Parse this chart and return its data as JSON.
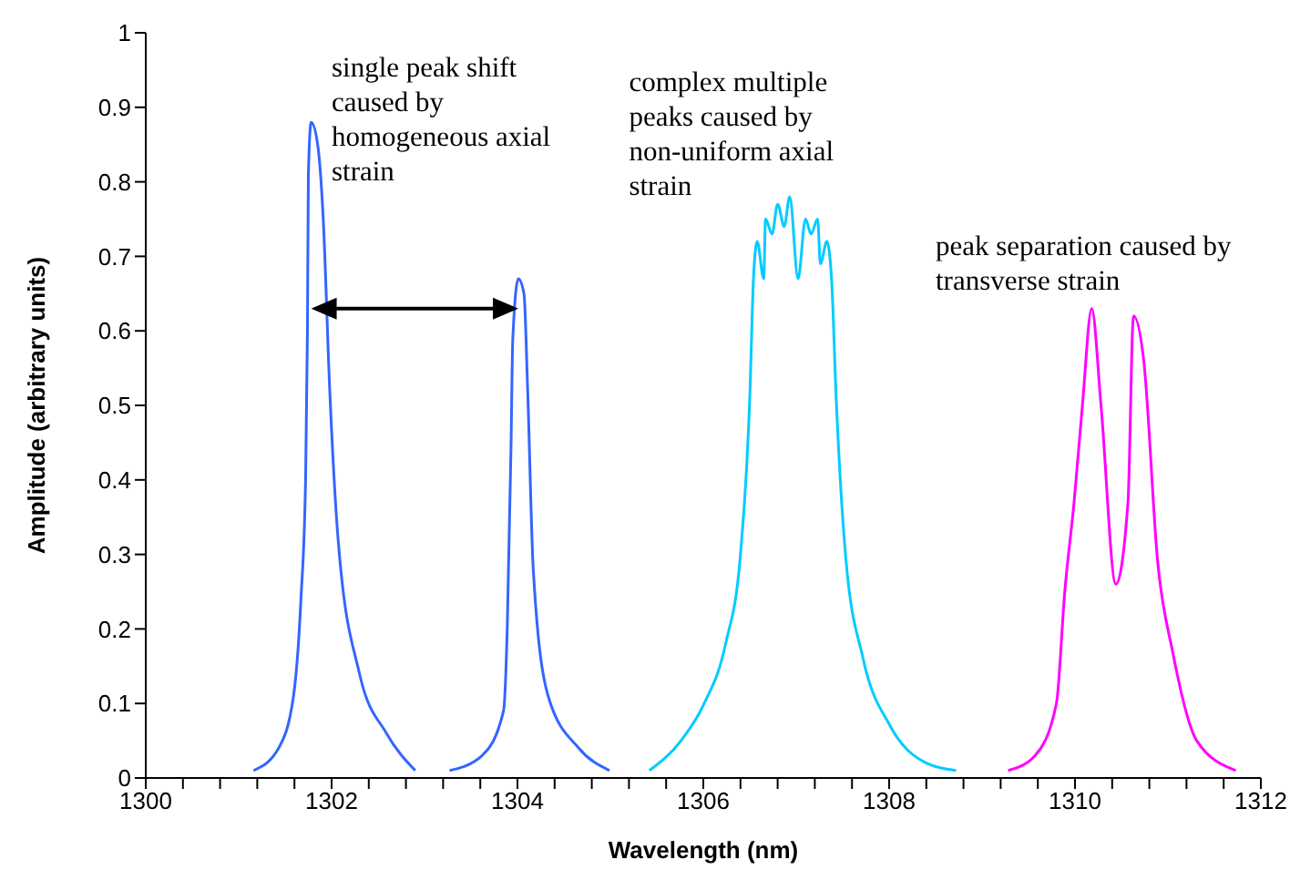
{
  "chart_data": {
    "type": "line",
    "xlabel": "Wavelength (nm)",
    "ylabel": "Amplitude (arbitrary units)",
    "xlim": [
      1300,
      1312
    ],
    "xticks": [
      1300,
      {
        "value": 1300.4,
        "label": null
      },
      {
        "value": 1300.8,
        "label": null
      },
      {
        "value": 1301.2,
        "label": null
      },
      {
        "value": 1301.6,
        "label": null
      },
      1302,
      {
        "value": 1302.4,
        "label": null
      },
      {
        "value": 1302.8,
        "label": null
      },
      {
        "value": 1303.2,
        "label": null
      },
      {
        "value": 1303.6,
        "label": null
      },
      1304,
      {
        "value": 1304.4,
        "label": null
      },
      {
        "value": 1304.8,
        "label": null
      },
      {
        "value": 1305.2,
        "label": null
      },
      {
        "value": 1305.6,
        "label": null
      },
      1306,
      {
        "value": 1306.4,
        "label": null
      },
      {
        "value": 1306.8,
        "label": null
      },
      {
        "value": 1307.2,
        "label": null
      },
      {
        "value": 1307.6,
        "label": null
      },
      1308,
      {
        "value": 1308.4,
        "label": null
      },
      {
        "value": 1308.8,
        "label": null
      },
      {
        "value": 1309.2,
        "label": null
      },
      {
        "value": 1309.6,
        "label": null
      },
      1310,
      {
        "value": 1310.4,
        "label": null
      },
      {
        "value": 1310.8,
        "label": null
      },
      {
        "value": 1311.2,
        "label": null
      },
      {
        "value": 1311.6,
        "label": null
      },
      1312
    ],
    "ylim": [
      0,
      1
    ],
    "yticks": [
      0,
      0.1,
      0.2,
      0.3,
      0.4,
      0.5,
      0.6,
      0.7,
      0.8,
      0.9,
      1
    ],
    "grid": false,
    "legend": false,
    "marker": "none",
    "line_style": "solid",
    "series": [
      {
        "color": "#3366ff",
        "x": [
          1301.16,
          1301.43,
          1301.59,
          1301.67,
          1301.72,
          1301.74,
          1301.75,
          1301.78,
          1301.85,
          1301.91,
          1301.98,
          1302.07,
          1302.3,
          1302.59,
          1302.9
        ],
        "values": [
          0.01,
          0.04,
          0.11,
          0.24,
          0.4,
          0.6,
          0.81,
          0.88,
          0.85,
          0.75,
          0.52,
          0.32,
          0.14,
          0.06,
          0.01
        ]
      },
      {
        "color": "#3366ff",
        "x": [
          1303.27,
          1303.62,
          1303.85,
          1303.89,
          1303.93,
          1303.95,
          1304.01,
          1304.07,
          1304.11,
          1304.17,
          1304.33,
          1304.66,
          1304.99
        ],
        "values": [
          0.01,
          0.03,
          0.09,
          0.2,
          0.44,
          0.59,
          0.67,
          0.65,
          0.52,
          0.28,
          0.11,
          0.04,
          0.01
        ]
      },
      {
        "color": "#00ccff",
        "x": [
          1305.42,
          1305.76,
          1306.01,
          1306.24,
          1306.4,
          1306.5,
          1306.54,
          1306.58,
          1306.65,
          1306.67,
          1306.74,
          1306.8,
          1306.87,
          1306.93,
          1307.02,
          1307.1,
          1307.16,
          1307.23,
          1307.26,
          1307.33,
          1307.38,
          1307.43,
          1307.53,
          1307.72,
          1308.01,
          1308.4,
          1308.72
        ],
        "values": [
          0.01,
          0.05,
          0.1,
          0.18,
          0.3,
          0.51,
          0.67,
          0.72,
          0.67,
          0.75,
          0.73,
          0.77,
          0.74,
          0.78,
          0.67,
          0.75,
          0.73,
          0.75,
          0.69,
          0.72,
          0.67,
          0.51,
          0.3,
          0.16,
          0.07,
          0.02,
          0.01
        ]
      },
      {
        "color": "#ff00ff",
        "x": [
          1309.28,
          1309.57,
          1309.8,
          1309.89,
          1309.99,
          1310.08,
          1310.18,
          1310.28,
          1310.44,
          1310.57,
          1310.63,
          1310.74,
          1310.89,
          1311.05,
          1311.31,
          1311.73
        ],
        "values": [
          0.01,
          0.03,
          0.1,
          0.25,
          0.37,
          0.5,
          0.63,
          0.5,
          0.26,
          0.37,
          0.62,
          0.56,
          0.29,
          0.17,
          0.05,
          0.01
        ]
      }
    ],
    "annotations": [
      "single peak shift caused by homogeneous axial strain",
      "complex multiple peaks caused by non-uniform axial strain",
      "peak separation caused by transverse strain"
    ]
  }
}
